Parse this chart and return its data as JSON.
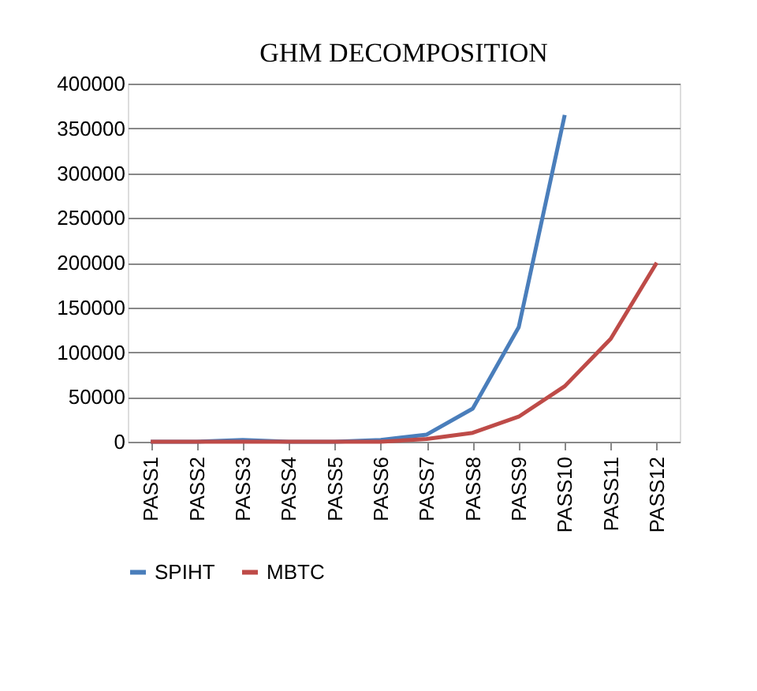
{
  "chart_data": {
    "type": "line",
    "title": "GHM DECOMPOSITION",
    "categories": [
      "PASS1",
      "PASS2",
      "PASS3",
      "PASS4",
      "PASS5",
      "PASS6",
      "PASS7",
      "PASS8",
      "PASS9",
      "PASS10",
      "PASS11",
      "PASS12"
    ],
    "series": [
      {
        "name": "SPIHT",
        "color": "#4a7ebb",
        "values": [
          0,
          0,
          2000,
          0,
          0,
          2000,
          8000,
          37000,
          128000,
          365000,
          null,
          null
        ]
      },
      {
        "name": "MBTC",
        "color": "#be4b48",
        "values": [
          0,
          0,
          0,
          0,
          0,
          0,
          3000,
          10000,
          28000,
          62000,
          115000,
          200000
        ]
      }
    ],
    "ylim": [
      0,
      400000
    ],
    "yticks": [
      0,
      50000,
      100000,
      150000,
      200000,
      250000,
      300000,
      350000,
      400000
    ],
    "grid": "y",
    "legend": "bottom",
    "marker": "none",
    "line_style": "solid"
  }
}
